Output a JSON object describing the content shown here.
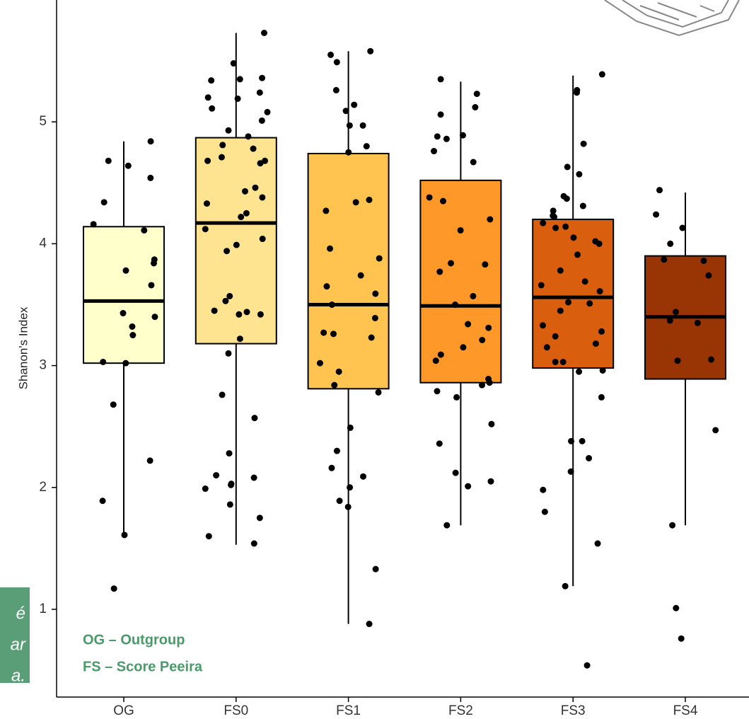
{
  "chart_data": {
    "type": "box",
    "y_label": "Shanon's Index",
    "categories": [
      "OG",
      "FS0",
      "FS1",
      "FS2",
      "FS3",
      "FS4"
    ],
    "ylim": [
      0.28,
      6.0
    ],
    "yticks": [
      1,
      2,
      3,
      4,
      5
    ],
    "boxes": [
      {
        "whislo": 1.6,
        "q1": 3.02,
        "med": 3.53,
        "q3": 4.14,
        "whishi": 4.84,
        "color": "#ffffcc"
      },
      {
        "whislo": 1.53,
        "q1": 3.18,
        "med": 4.17,
        "q3": 4.87,
        "whishi": 5.73,
        "color": "#fee391"
      },
      {
        "whislo": 0.88,
        "q1": 2.81,
        "med": 3.5,
        "q3": 4.74,
        "whishi": 5.58,
        "color": "#fec44f"
      },
      {
        "whislo": 1.69,
        "q1": 2.86,
        "med": 3.49,
        "q3": 4.52,
        "whishi": 5.33,
        "color": "#fe9929"
      },
      {
        "whislo": 1.19,
        "q1": 2.98,
        "med": 3.56,
        "q3": 4.2,
        "whishi": 5.38,
        "color": "#d95f0e"
      },
      {
        "whislo": 1.69,
        "q1": 2.89,
        "med": 3.4,
        "q3": 3.9,
        "whishi": 4.42,
        "color": "#993404"
      }
    ],
    "points": [
      [
        4.84,
        4.68,
        4.54,
        4.64,
        4.34,
        4.16,
        4.11,
        3.87,
        3.84,
        3.78,
        3.66,
        3.43,
        3.4,
        3.32,
        3.25,
        3.03,
        3.02,
        2.68,
        2.22,
        1.89,
        1.61,
        1.17
      ],
      [
        5.73,
        5.48,
        5.35,
        5.36,
        5.34,
        5.24,
        5.19,
        5.2,
        5.11,
        5.08,
        5.01,
        4.93,
        4.88,
        4.81,
        4.78,
        4.71,
        4.68,
        4.68,
        4.66,
        4.46,
        4.43,
        4.38,
        4.33,
        4.25,
        4.22,
        4.12,
        4.04,
        3.99,
        3.94,
        3.57,
        3.53,
        3.45,
        3.44,
        3.42,
        3.42,
        3.22,
        3.1,
        2.76,
        2.57,
        2.28,
        2.1,
        2.08,
        2.03,
        2.02,
        1.99,
        1.86,
        1.75,
        1.6,
        1.54
      ],
      [
        5.58,
        5.55,
        5.49,
        5.26,
        5.14,
        5.09,
        4.97,
        4.97,
        4.8,
        4.75,
        4.36,
        4.34,
        4.27,
        3.96,
        3.88,
        3.74,
        3.65,
        3.59,
        3.5,
        3.39,
        3.27,
        3.26,
        3.23,
        3.02,
        2.95,
        2.84,
        2.78,
        2.49,
        2.3,
        2.16,
        2.09,
        2.0,
        1.89,
        1.84,
        1.33,
        0.88
      ],
      [
        5.35,
        5.23,
        5.12,
        5.06,
        4.89,
        4.88,
        4.86,
        4.76,
        4.67,
        4.38,
        4.35,
        4.2,
        4.11,
        3.84,
        3.83,
        3.77,
        3.57,
        3.5,
        3.34,
        3.31,
        3.21,
        3.15,
        3.09,
        3.04,
        2.89,
        2.86,
        2.84,
        2.79,
        2.74,
        2.52,
        2.36,
        2.12,
        2.05,
        2.01,
        1.69
      ],
      [
        5.39,
        5.26,
        5.24,
        4.82,
        4.63,
        4.57,
        4.39,
        4.37,
        4.31,
        4.27,
        4.23,
        4.22,
        4.17,
        4.14,
        4.13,
        4.05,
        4.02,
        4.0,
        3.91,
        3.78,
        3.69,
        3.66,
        3.61,
        3.52,
        3.51,
        3.45,
        3.33,
        3.28,
        3.24,
        3.18,
        3.15,
        3.03,
        3.03,
        2.96,
        2.95,
        2.74,
        2.38,
        2.38,
        2.24,
        2.13,
        1.98,
        1.8,
        1.54,
        1.19,
        0.54
      ],
      [
        4.44,
        4.24,
        4.13,
        4.0,
        3.87,
        3.86,
        3.74,
        3.44,
        3.37,
        3.35,
        3.05,
        3.04,
        2.47,
        1.69,
        1.01,
        0.76
      ]
    ],
    "point_color": "#000000",
    "annotations": [
      "OG – Outgroup",
      "FS – Score Peeira"
    ]
  },
  "side_note": {
    "lines": [
      "é",
      "ar",
      "a."
    ]
  }
}
